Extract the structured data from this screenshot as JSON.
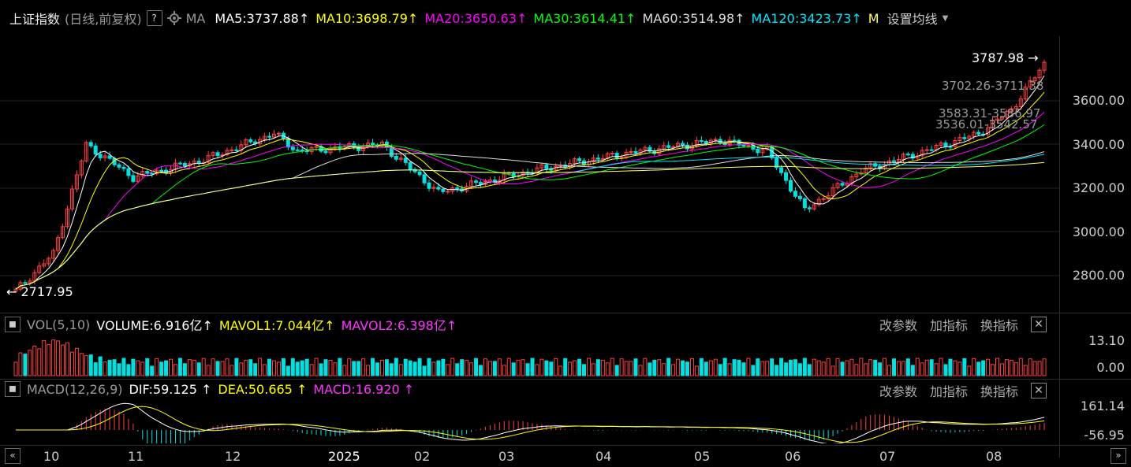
{
  "main": {
    "index_name": "上证指数",
    "mode": "(日线,前复权)",
    "help_icon": "?",
    "gear_icon": "gear-icon",
    "ma_label": "MA",
    "ma_values": [
      {
        "label": "MA5:3737.88",
        "color": "#ffffff"
      },
      {
        "label": "MA10:3698.79",
        "color": "#ffff00"
      },
      {
        "label": "MA20:3650.63",
        "color": "#ff00ff"
      },
      {
        "label": "MA30:3614.41",
        "color": "#00ff00"
      },
      {
        "label": "MA60:3514.98",
        "color": "#dddddd"
      },
      {
        "label": "MA120:3423.73",
        "color": "#00e5ff"
      },
      {
        "label": "M",
        "color": "#ffff66"
      }
    ],
    "arrow_symbol": "↑",
    "settings_label": "设置均线",
    "price_axis": [
      "3600.00",
      "3400.00",
      "3200.00",
      "3000.00",
      "2800.00"
    ],
    "high_label": "3787.98",
    "low_label": "2717.95",
    "overlap_1": "3702.26-3711.38",
    "overlap_2": "3583.31-3586.97",
    "overlap_3": "3536.01-3542.57"
  },
  "volume_pane": {
    "title": "VOL(5,10)",
    "volume": "VOLUME:6.916亿",
    "mavol1": "MAVOL1:7.044亿",
    "mavol2": "MAVOL2:6.398亿",
    "axis": [
      "13.10",
      "0.00"
    ],
    "actions": [
      "改参数",
      "加指标",
      "换指标"
    ],
    "close": "✕"
  },
  "macd_pane": {
    "title": "MACD(12,26,9)",
    "dif": "DIF:59.125",
    "dea": "DEA:50.665",
    "macd": "MACD:16.920",
    "axis": [
      "161.14",
      "-56.95"
    ],
    "actions": [
      "改参数",
      "加指标",
      "换指标"
    ],
    "close": "✕"
  },
  "time_axis": [
    "10",
    "11",
    "12",
    "2025",
    "02",
    "03",
    "04",
    "05",
    "06",
    "07",
    "08"
  ],
  "colors": {
    "up": "#ff4040",
    "down": "#00e0e0",
    "grid": "#2b2b2b"
  }
}
